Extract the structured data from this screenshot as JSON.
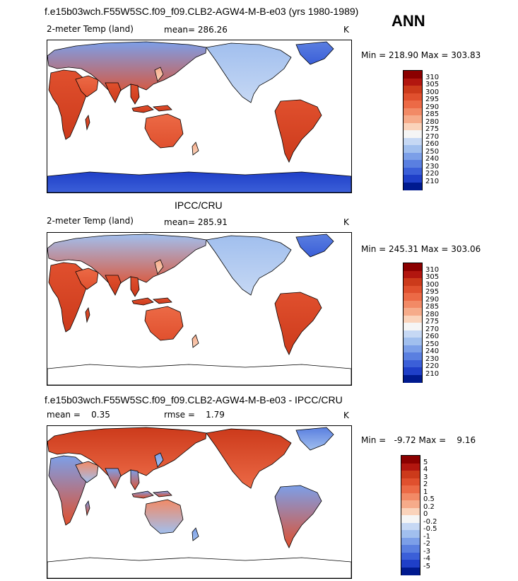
{
  "season": "ANN",
  "panels": [
    {
      "id": "model",
      "title": "f.e15b03wch.F55W5SC.f09_f09.CLB2-AGW4-M-B-e03 (yrs 1980-1989)",
      "left_label": "2-meter Temp (land)",
      "mean_label": "mean= 286.26",
      "unit": "K",
      "minmax": "Min = 218.90 Max = 303.83",
      "colorbar_levels": [
        "310",
        "305",
        "300",
        "295",
        "290",
        "285",
        "280",
        "275",
        "270",
        "260",
        "250",
        "240",
        "230",
        "220",
        "210"
      ]
    },
    {
      "id": "obs",
      "title": "IPCC/CRU",
      "left_label": "2-meter Temp (land)",
      "mean_label": "mean= 285.91",
      "unit": "K",
      "minmax": "Min = 245.31 Max = 303.06",
      "colorbar_levels": [
        "310",
        "305",
        "300",
        "295",
        "290",
        "285",
        "280",
        "275",
        "270",
        "260",
        "250",
        "240",
        "230",
        "220",
        "210"
      ]
    },
    {
      "id": "diff",
      "title": "f.e15b03wch.F55W5SC.f09_f09.CLB2-AGW4-M-B-e03 - IPCC/CRU",
      "mean_label": "mean =    0.35",
      "rmse_label": "rmse =    1.79",
      "unit": "K",
      "minmax": "Min =   -9.72 Max =    9.16",
      "colorbar_levels": [
        "5",
        "4",
        "3",
        "2",
        "1",
        "0.5",
        "0.2",
        "0",
        "-0.2",
        "-0.5",
        "-1",
        "-2",
        "-3",
        "-4",
        "-5"
      ]
    }
  ],
  "colors": {
    "abs_scale": [
      "#8b0000",
      "#b2160f",
      "#cc3a1b",
      "#e0502e",
      "#ec6a46",
      "#f28a66",
      "#f6ab8a",
      "#fad3bb",
      "#f5f5f5",
      "#c6d8f4",
      "#a1bfee",
      "#7c9fe8",
      "#5a7fe0",
      "#3b5fd8",
      "#1f3fc8",
      "#001a8f"
    ],
    "diff_scale": [
      "#8b0000",
      "#b2160f",
      "#cc3a1b",
      "#e0502e",
      "#ec6a46",
      "#f28a66",
      "#f6ab8a",
      "#fad3bb",
      "#f5f5f5",
      "#c6d8f4",
      "#a1bfee",
      "#7c9fe8",
      "#5a7fe0",
      "#3b5fd8",
      "#1f3fc8",
      "#001a8f"
    ]
  }
}
